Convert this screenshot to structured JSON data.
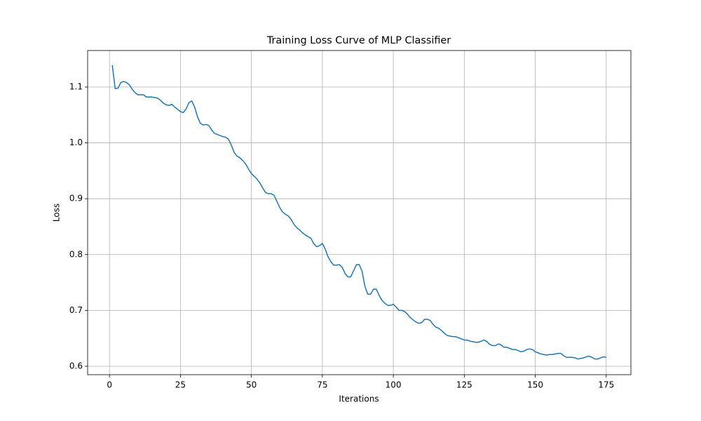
{
  "chart_data": {
    "type": "line",
    "title": "Training Loss Curve of MLP Classifier",
    "x_label": "Iterations",
    "y_label": "Loss",
    "x": [
      1,
      2,
      3,
      4,
      5,
      6,
      7,
      8,
      9,
      10,
      11,
      12,
      13,
      14,
      15,
      16,
      17,
      18,
      19,
      20,
      21,
      22,
      23,
      24,
      25,
      26,
      27,
      28,
      29,
      30,
      31,
      32,
      33,
      34,
      35,
      36,
      37,
      38,
      39,
      40,
      41,
      42,
      43,
      44,
      45,
      46,
      47,
      48,
      49,
      50,
      51,
      52,
      53,
      54,
      55,
      56,
      57,
      58,
      59,
      60,
      61,
      62,
      63,
      64,
      65,
      66,
      67,
      68,
      69,
      70,
      71,
      72,
      73,
      74,
      75,
      76,
      77,
      78,
      79,
      80,
      81,
      82,
      83,
      84,
      85,
      86,
      87,
      88,
      89,
      90,
      91,
      92,
      93,
      94,
      95,
      96,
      97,
      98,
      99,
      100,
      101,
      102,
      103,
      104,
      105,
      106,
      107,
      108,
      109,
      110,
      111,
      112,
      113,
      114,
      115,
      116,
      117,
      118,
      119,
      120,
      121,
      122,
      123,
      124,
      125,
      126,
      127,
      128,
      129,
      130,
      131,
      132,
      133,
      134,
      135,
      136,
      137,
      138,
      139,
      140,
      141,
      142,
      143,
      144,
      145,
      146,
      147,
      148,
      149,
      150,
      151,
      152,
      153,
      154,
      155,
      156,
      157,
      158,
      159,
      160,
      161,
      162,
      163,
      164,
      165,
      166,
      167,
      168,
      169,
      170,
      171,
      172,
      173,
      174,
      175
    ],
    "series": [
      {
        "color": "#1f77b4",
        "values": [
          1.139,
          1.097,
          1.098,
          1.108,
          1.11,
          1.108,
          1.104,
          1.096,
          1.09,
          1.086,
          1.086,
          1.086,
          1.082,
          1.082,
          1.082,
          1.081,
          1.08,
          1.076,
          1.071,
          1.068,
          1.067,
          1.069,
          1.064,
          1.06,
          1.056,
          1.054,
          1.061,
          1.072,
          1.075,
          1.064,
          1.047,
          1.035,
          1.032,
          1.033,
          1.031,
          1.023,
          1.017,
          1.015,
          1.013,
          1.011,
          1.01,
          1.006,
          0.995,
          0.982,
          0.976,
          0.973,
          0.968,
          0.962,
          0.953,
          0.945,
          0.94,
          0.935,
          0.928,
          0.919,
          0.911,
          0.909,
          0.909,
          0.906,
          0.895,
          0.884,
          0.876,
          0.872,
          0.869,
          0.863,
          0.854,
          0.848,
          0.844,
          0.839,
          0.835,
          0.832,
          0.829,
          0.819,
          0.814,
          0.816,
          0.82,
          0.81,
          0.796,
          0.787,
          0.781,
          0.781,
          0.782,
          0.777,
          0.766,
          0.76,
          0.76,
          0.771,
          0.782,
          0.782,
          0.77,
          0.743,
          0.729,
          0.729,
          0.738,
          0.738,
          0.727,
          0.718,
          0.713,
          0.709,
          0.709,
          0.711,
          0.706,
          0.7,
          0.7,
          0.698,
          0.693,
          0.687,
          0.683,
          0.679,
          0.677,
          0.678,
          0.684,
          0.684,
          0.682,
          0.675,
          0.67,
          0.668,
          0.664,
          0.659,
          0.655,
          0.654,
          0.653,
          0.653,
          0.651,
          0.649,
          0.647,
          0.647,
          0.645,
          0.644,
          0.643,
          0.643,
          0.645,
          0.647,
          0.644,
          0.639,
          0.637,
          0.637,
          0.64,
          0.638,
          0.634,
          0.634,
          0.632,
          0.63,
          0.63,
          0.628,
          0.626,
          0.627,
          0.63,
          0.631,
          0.63,
          0.626,
          0.624,
          0.622,
          0.621,
          0.62,
          0.621,
          0.621,
          0.622,
          0.623,
          0.623,
          0.619,
          0.616,
          0.616,
          0.616,
          0.615,
          0.613,
          0.614,
          0.615,
          0.617,
          0.618,
          0.616,
          0.613,
          0.613,
          0.615,
          0.617,
          0.616
        ]
      }
    ],
    "xlim": [
      -7.7,
      183.7
    ],
    "ylim": [
      0.5849,
      1.1653
    ],
    "xticks": [
      0,
      25,
      50,
      75,
      100,
      125,
      150,
      175
    ],
    "yticks": [
      0.6,
      0.7,
      0.8,
      0.9,
      {
        "value": 1,
        "label": "1.0"
      },
      1.1
    ],
    "grid": true
  }
}
